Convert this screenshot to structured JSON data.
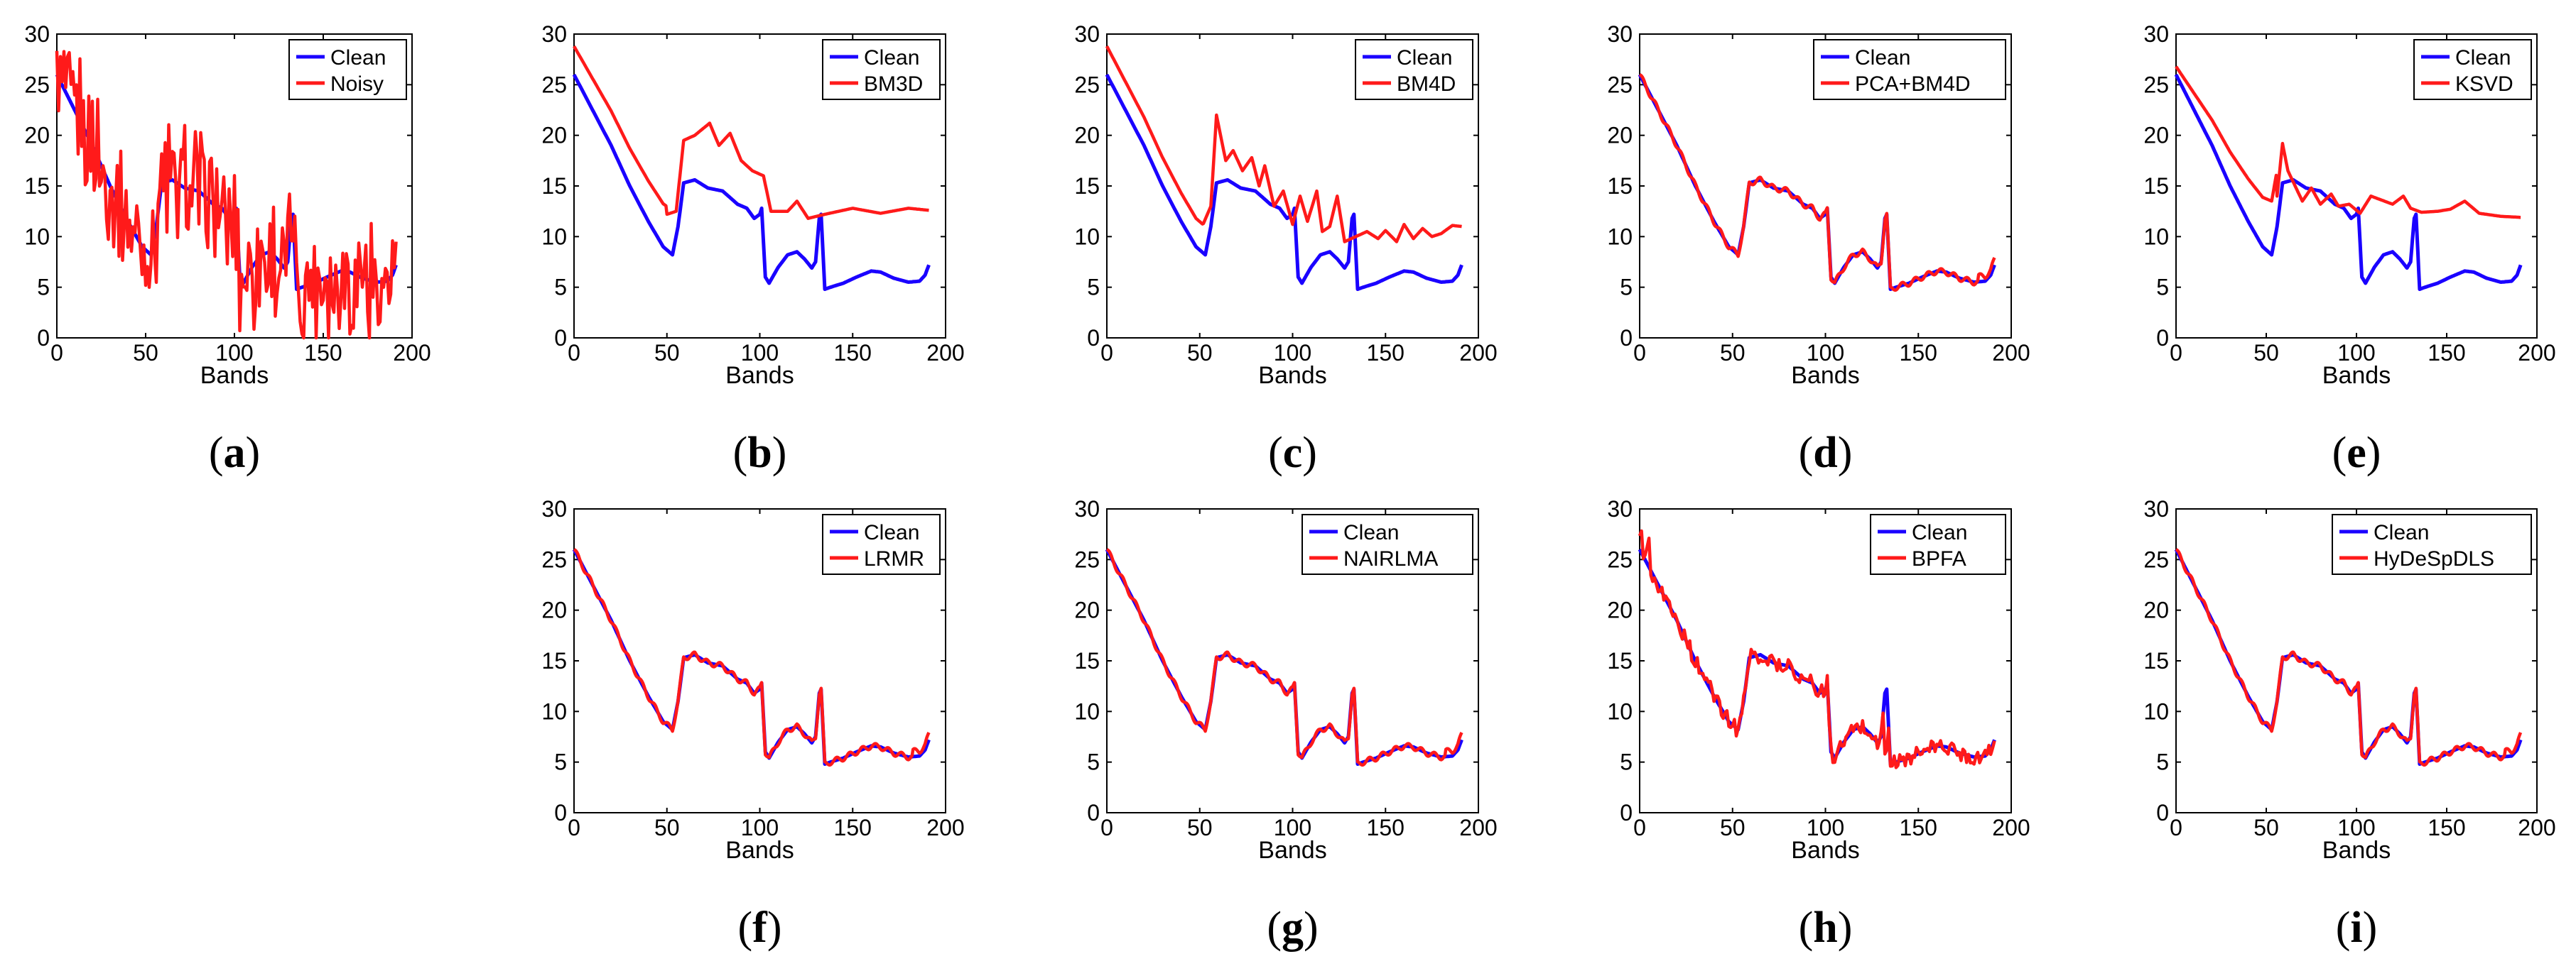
{
  "figure": {
    "x_range": [
      0,
      200
    ],
    "y_range": [
      0,
      30
    ],
    "x_ticks": [
      "0",
      "50",
      "100",
      "150",
      "200"
    ],
    "y_ticks": [
      "0",
      "5",
      "10",
      "15",
      "20",
      "25",
      "30"
    ]
  },
  "colors": {
    "clean": "#1a00ff",
    "method": "#ff1a1a"
  },
  "chart_data": [
    {
      "id": "a",
      "caption_letter": "a",
      "type": "line",
      "title": "",
      "xlabel": "Bands",
      "ylabel": "",
      "xlim": [
        0,
        200
      ],
      "ylim": [
        0,
        30
      ],
      "series": [
        {
          "name": "Clean",
          "role": "clean"
        },
        {
          "name": "Noisy",
          "role": "method",
          "profile": "noisy"
        }
      ]
    },
    {
      "id": "b",
      "caption_letter": "b",
      "type": "line",
      "title": "",
      "xlabel": "Bands",
      "ylabel": "",
      "xlim": [
        0,
        200
      ],
      "ylim": [
        0,
        30
      ],
      "series": [
        {
          "name": "Clean",
          "role": "clean"
        },
        {
          "name": "BM3D",
          "role": "method",
          "profile": "bm3d"
        }
      ]
    },
    {
      "id": "c",
      "caption_letter": "c",
      "type": "line",
      "title": "",
      "xlabel": "Bands",
      "ylabel": "",
      "xlim": [
        0,
        200
      ],
      "ylim": [
        0,
        30
      ],
      "series": [
        {
          "name": "Clean",
          "role": "clean"
        },
        {
          "name": "BM4D",
          "role": "method",
          "profile": "bm4d"
        }
      ]
    },
    {
      "id": "d",
      "caption_letter": "d",
      "type": "line",
      "title": "",
      "xlabel": "Bands",
      "ylabel": "",
      "xlim": [
        0,
        200
      ],
      "ylim": [
        0,
        30
      ],
      "series": [
        {
          "name": "Clean",
          "role": "clean"
        },
        {
          "name": "PCA+BM4D",
          "role": "method",
          "profile": "close"
        }
      ]
    },
    {
      "id": "e",
      "caption_letter": "e",
      "type": "line",
      "title": "",
      "xlabel": "Bands",
      "ylabel": "",
      "xlim": [
        0,
        200
      ],
      "ylim": [
        0,
        30
      ],
      "series": [
        {
          "name": "Clean",
          "role": "clean"
        },
        {
          "name": "KSVD",
          "role": "method",
          "profile": "ksvd"
        }
      ]
    },
    {
      "id": "f",
      "caption_letter": "f",
      "type": "line",
      "title": "",
      "xlabel": "Bands",
      "ylabel": "",
      "xlim": [
        0,
        200
      ],
      "ylim": [
        0,
        30
      ],
      "series": [
        {
          "name": "Clean",
          "role": "clean"
        },
        {
          "name": "LRMR",
          "role": "method",
          "profile": "close"
        }
      ]
    },
    {
      "id": "g",
      "caption_letter": "g",
      "type": "line",
      "title": "",
      "xlabel": "Bands",
      "ylabel": "",
      "xlim": [
        0,
        200
      ],
      "ylim": [
        0,
        30
      ],
      "series": [
        {
          "name": "Clean",
          "role": "clean"
        },
        {
          "name": "NAIRLMA",
          "role": "method",
          "profile": "close"
        }
      ]
    },
    {
      "id": "h",
      "caption_letter": "h",
      "type": "line",
      "title": "",
      "xlabel": "Bands",
      "ylabel": "",
      "xlim": [
        0,
        200
      ],
      "ylim": [
        0,
        30
      ],
      "series": [
        {
          "name": "Clean",
          "role": "clean"
        },
        {
          "name": "BPFA",
          "role": "method",
          "profile": "bpfa"
        }
      ]
    },
    {
      "id": "i",
      "caption_letter": "i",
      "type": "line",
      "title": "",
      "xlabel": "Bands",
      "ylabel": "",
      "xlim": [
        0,
        200
      ],
      "ylim": [
        0,
        30
      ],
      "series": [
        {
          "name": "Clean",
          "role": "clean"
        },
        {
          "name": "HyDeSpDLS",
          "role": "method",
          "profile": "close"
        }
      ]
    }
  ]
}
